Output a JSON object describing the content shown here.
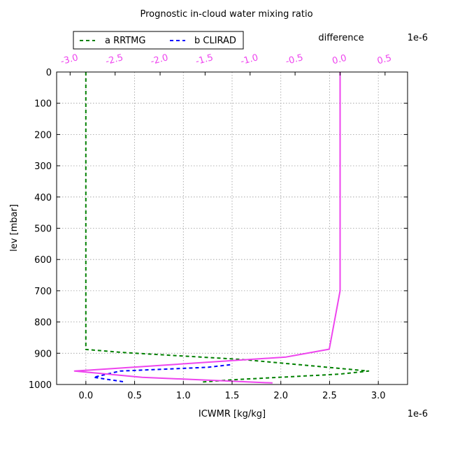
{
  "chart_data": {
    "type": "line",
    "title": "Prognostic in-cloud water mixing ratio",
    "xlabel": "ICWMR [kg/kg]",
    "ylabel": "lev [mbar]",
    "x_offset_label": "1e-6",
    "xlim": [
      -3e-07,
      3.3e-06
    ],
    "xticks": [
      "0.0",
      "0.5",
      "1.0",
      "1.5",
      "2.0",
      "2.5",
      "3.0"
    ],
    "ylim": [
      1000,
      0
    ],
    "yticks": [
      "0",
      "100",
      "200",
      "300",
      "400",
      "500",
      "600",
      "700",
      "800",
      "900",
      "1000"
    ],
    "grid": true,
    "legend_position": "top-left",
    "top_axis": {
      "label": "difference",
      "offset_label": "1e-6",
      "color": "#ee44ee",
      "xlim": [
        -3.15e-06,
        7.5e-07
      ],
      "xticks": [
        "-3.0",
        "-2.5",
        "-2.0",
        "-1.5",
        "-1.0",
        "-0.5",
        "0.0",
        "0.5"
      ]
    },
    "series": [
      {
        "name": "a RRTMG",
        "axis": "bottom",
        "color": "#008000",
        "style": "dashed",
        "x": [
          0,
          0,
          0,
          0,
          0,
          0,
          0,
          0,
          0,
          0,
          0.0,
          4e-07,
          1.6e-06,
          2.2e-06,
          2.9e-06,
          2.6e-06,
          1.5e-06,
          1.2e-06
        ],
        "y": [
          0,
          100,
          200,
          300,
          400,
          500,
          600,
          700,
          800,
          870,
          888,
          898,
          920,
          937,
          957,
          967,
          985,
          992
        ]
      },
      {
        "name": "b CLIRAD",
        "axis": "bottom",
        "color": "#0000ff",
        "style": "dashed",
        "x": [
          1.48e-06,
          1.25e-06,
          3.5e-07,
          8e-08,
          4e-07
        ],
        "y": [
          937,
          945,
          957,
          977,
          992
        ]
      },
      {
        "name": "difference",
        "axis": "top",
        "color": "#ee44ee",
        "style": "solid",
        "x": [
          0.0,
          0.0,
          0.0,
          0.0,
          0.0,
          0.0,
          0.0,
          0.0,
          -1.2e-07,
          -6e-07,
          -2.95e-06,
          -2.2e-06,
          -7.5e-07
        ],
        "y": [
          0,
          100,
          200,
          300,
          400,
          500,
          600,
          700,
          887,
          912,
          957,
          977,
          995
        ]
      }
    ]
  }
}
